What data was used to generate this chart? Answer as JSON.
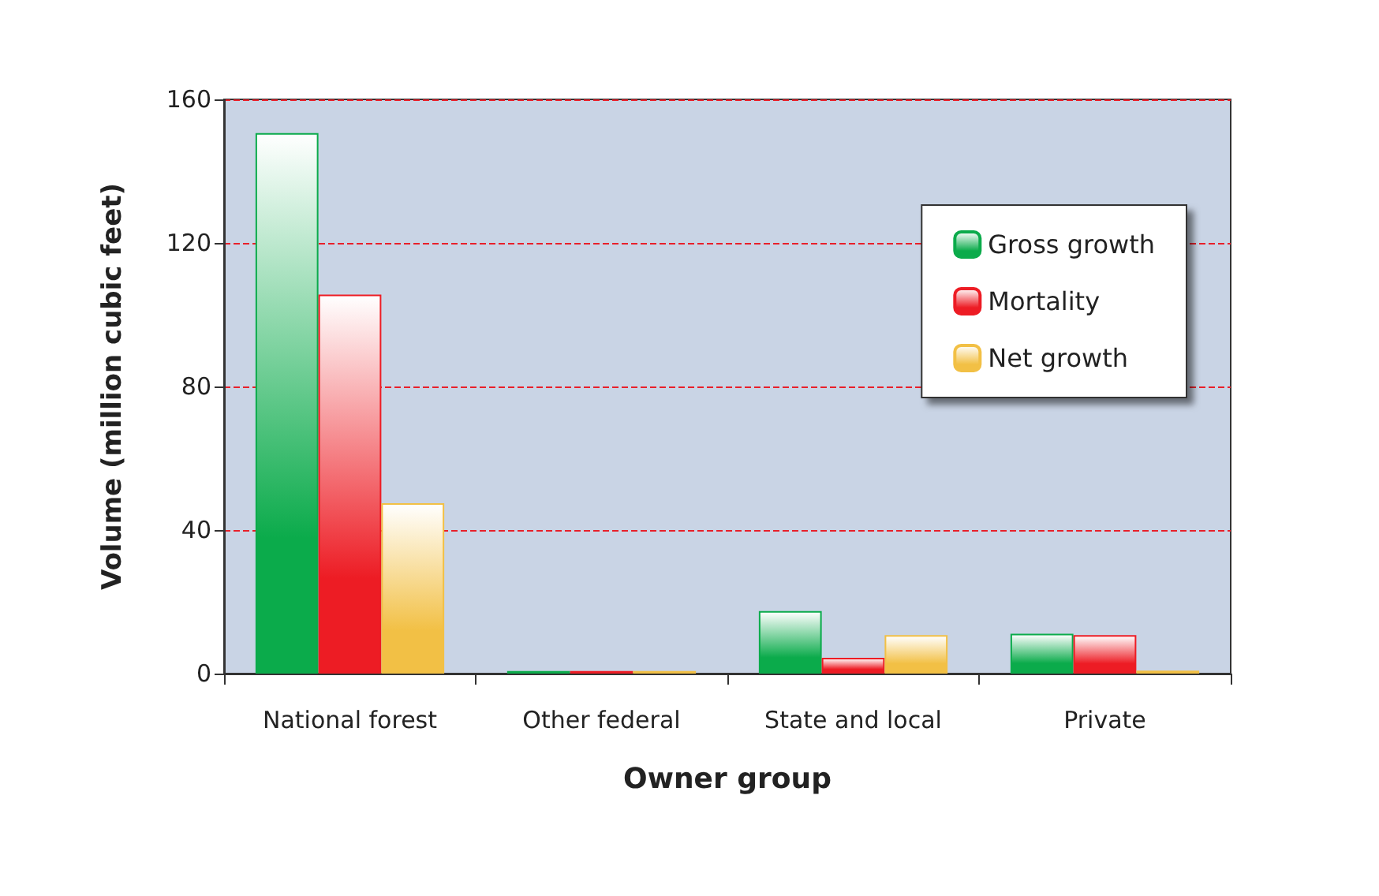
{
  "chart_data": {
    "type": "bar",
    "xlabel": "Owner group",
    "ylabel": "Volume (million cubic feet)",
    "categories": [
      "National forest",
      "Other federal",
      "State and local",
      "Private"
    ],
    "series": [
      {
        "name": "Gross growth",
        "color": "#0bab4b",
        "values": [
          150.6,
          0.7,
          17.4,
          11.1
        ]
      },
      {
        "name": "Mortality",
        "color": "#ed1c24",
        "values": [
          105.6,
          0.7,
          4.4,
          10.7
        ]
      },
      {
        "name": "Net growth",
        "color": "#f2c045",
        "values": [
          47.5,
          0.7,
          10.7,
          0.8
        ]
      }
    ],
    "ylim": [
      0,
      160
    ],
    "yticks": [
      0,
      40,
      80,
      120,
      160
    ],
    "grid": "y",
    "legend": "top right"
  }
}
